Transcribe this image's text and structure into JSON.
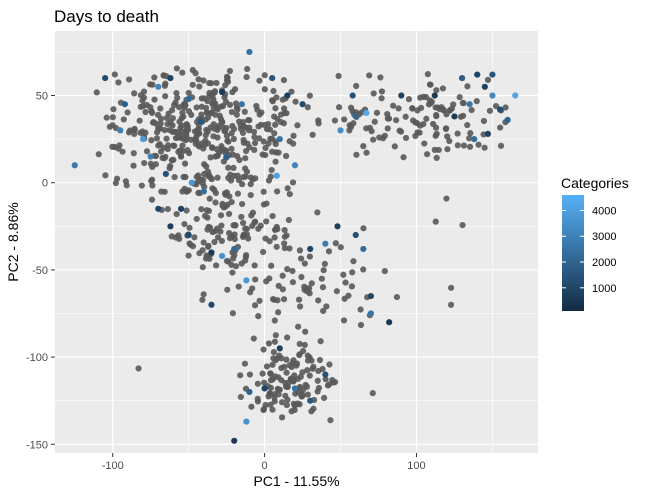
{
  "chart_data": {
    "type": "scatter",
    "title": "Days to death",
    "xlabel": "PC1 - 11.55%",
    "ylabel": "PC2 - 8.86%",
    "xlim": [
      -138,
      180
    ],
    "ylim": [
      -155,
      87
    ],
    "x_ticks": [
      -100,
      0,
      100
    ],
    "x_tick_labels": [
      "-100",
      "0",
      "100"
    ],
    "y_ticks": [
      -150,
      -100,
      -50,
      0,
      50
    ],
    "y_tick_labels": [
      "-150",
      "-100",
      "-50",
      "0",
      "50"
    ],
    "grid": true,
    "panel_background": "#ebebeb",
    "grid_color": "#ffffff",
    "na_color": "#595959",
    "legend": {
      "title": "Categories",
      "position": "right",
      "range": [
        100,
        4600
      ],
      "breaks": [
        1000,
        2000,
        3000,
        4000
      ],
      "break_labels": [
        "1000",
        "2000",
        "3000",
        "4000"
      ],
      "color_low": "#132b43",
      "color_high": "#56b1f7"
    },
    "highlighted_points": [
      {
        "x": -105,
        "y": 60,
        "v": 1200
      },
      {
        "x": -125,
        "y": 10,
        "v": 2800
      },
      {
        "x": -95,
        "y": 30,
        "v": 3000
      },
      {
        "x": -92,
        "y": 45,
        "v": 1800
      },
      {
        "x": -80,
        "y": 25,
        "v": 3900
      },
      {
        "x": -70,
        "y": 55,
        "v": 3200
      },
      {
        "x": -62,
        "y": 60,
        "v": 900
      },
      {
        "x": -50,
        "y": 48,
        "v": 2200
      },
      {
        "x": -42,
        "y": 35,
        "v": 1600
      },
      {
        "x": -28,
        "y": 52,
        "v": 600
      },
      {
        "x": -15,
        "y": 45,
        "v": 2600
      },
      {
        "x": -10,
        "y": 75,
        "v": 2500
      },
      {
        "x": 5,
        "y": 60,
        "v": 1500
      },
      {
        "x": 15,
        "y": 50,
        "v": 700
      },
      {
        "x": -75,
        "y": 15,
        "v": 2900
      },
      {
        "x": -65,
        "y": 5,
        "v": 1300
      },
      {
        "x": -55,
        "y": -15,
        "v": 800
      },
      {
        "x": -48,
        "y": 0,
        "v": 3700
      },
      {
        "x": -40,
        "y": -5,
        "v": 2400
      },
      {
        "x": -25,
        "y": 15,
        "v": 1900
      },
      {
        "x": 10,
        "y": 25,
        "v": 2600
      },
      {
        "x": 20,
        "y": 10,
        "v": 3100
      },
      {
        "x": 8,
        "y": 4,
        "v": 4000
      },
      {
        "x": 25,
        "y": 45,
        "v": 1100
      },
      {
        "x": 50,
        "y": 30,
        "v": 3400
      },
      {
        "x": 60,
        "y": 38,
        "v": 2100
      },
      {
        "x": 67,
        "y": 40,
        "v": 4300
      },
      {
        "x": 58,
        "y": 50,
        "v": 1400
      },
      {
        "x": 90,
        "y": 50,
        "v": 900
      },
      {
        "x": 112,
        "y": 50,
        "v": 600
      },
      {
        "x": 130,
        "y": 60,
        "v": 1700
      },
      {
        "x": 135,
        "y": 45,
        "v": 2700
      },
      {
        "x": 140,
        "y": 62,
        "v": 1000
      },
      {
        "x": 145,
        "y": 55,
        "v": 800
      },
      {
        "x": 150,
        "y": 50,
        "v": 3300
      },
      {
        "x": 155,
        "y": 42,
        "v": 1200
      },
      {
        "x": 160,
        "y": 36,
        "v": 2000
      },
      {
        "x": 147,
        "y": 28,
        "v": 900
      },
      {
        "x": 138,
        "y": 25,
        "v": 2300
      },
      {
        "x": 165,
        "y": 50,
        "v": 4200
      },
      {
        "x": 150,
        "y": 62,
        "v": 1500
      },
      {
        "x": 125,
        "y": 38,
        "v": 700
      },
      {
        "x": -70,
        "y": -15,
        "v": 1000
      },
      {
        "x": -62,
        "y": -25,
        "v": 700
      },
      {
        "x": -50,
        "y": -30,
        "v": 1200
      },
      {
        "x": -35,
        "y": -40,
        "v": 600
      },
      {
        "x": -28,
        "y": -42,
        "v": 3500
      },
      {
        "x": -20,
        "y": -38,
        "v": 2200
      },
      {
        "x": -12,
        "y": -56,
        "v": 3800
      },
      {
        "x": 30,
        "y": -38,
        "v": 900
      },
      {
        "x": 48,
        "y": -25,
        "v": 700
      },
      {
        "x": 60,
        "y": -30,
        "v": 1400
      },
      {
        "x": 65,
        "y": -38,
        "v": 2300
      },
      {
        "x": 70,
        "y": -65,
        "v": 1000
      },
      {
        "x": 82,
        "y": -80,
        "v": 500
      },
      {
        "x": 70,
        "y": -75,
        "v": 2600
      },
      {
        "x": -35,
        "y": -70,
        "v": 1100
      },
      {
        "x": 10,
        "y": -95,
        "v": 800
      },
      {
        "x": 20,
        "y": -118,
        "v": 2500
      },
      {
        "x": 30,
        "y": -125,
        "v": 1600
      },
      {
        "x": 0,
        "y": -118,
        "v": 900
      },
      {
        "x": -10,
        "y": -120,
        "v": 2000
      },
      {
        "x": -12,
        "y": -137,
        "v": 3600
      },
      {
        "x": -20,
        "y": -148,
        "v": 600
      },
      {
        "x": 40,
        "y": -110,
        "v": 1300
      },
      {
        "x": 40,
        "y": -35,
        "v": 2800
      }
    ],
    "na_points_count": 880,
    "na_point_clusters": [
      {
        "x_range": [
          -115,
          35
        ],
        "y_range": [
          -10,
          70
        ],
        "share": 0.45
      },
      {
        "x_range": [
          -80,
          30
        ],
        "y_range": [
          -55,
          10
        ],
        "share": 0.15
      },
      {
        "x_range": [
          -45,
          85
        ],
        "y_range": [
          -90,
          -30
        ],
        "share": 0.08
      },
      {
        "x_range": [
          -20,
          50
        ],
        "y_range": [
          -145,
          -85
        ],
        "share": 0.14
      },
      {
        "x_range": [
          30,
          170
        ],
        "y_range": [
          10,
          65
        ],
        "share": 0.14
      },
      {
        "x_range": [
          -125,
          180
        ],
        "y_range": [
          -150,
          85
        ],
        "share": 0.04
      }
    ]
  }
}
